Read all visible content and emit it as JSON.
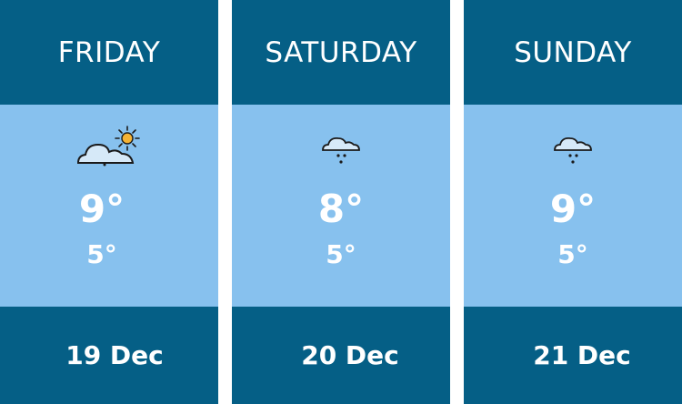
{
  "days": [
    {
      "name": "FRIDAY",
      "icon": "partly-sunny-icon",
      "high": "9°",
      "low": "5°",
      "date": "19 Dec"
    },
    {
      "name": "SATURDAY",
      "icon": "rain-cloud-icon",
      "high": "8°",
      "low": "5°",
      "date": "20 Dec"
    },
    {
      "name": "SUNDAY",
      "icon": "rain-cloud-icon",
      "high": "9°",
      "low": "5°",
      "date": "21 Dec"
    }
  ],
  "colors": {
    "dark": "#055f86",
    "light": "#87c1ee",
    "sun": "#f5b335",
    "cloud": "#d6e9f8"
  }
}
